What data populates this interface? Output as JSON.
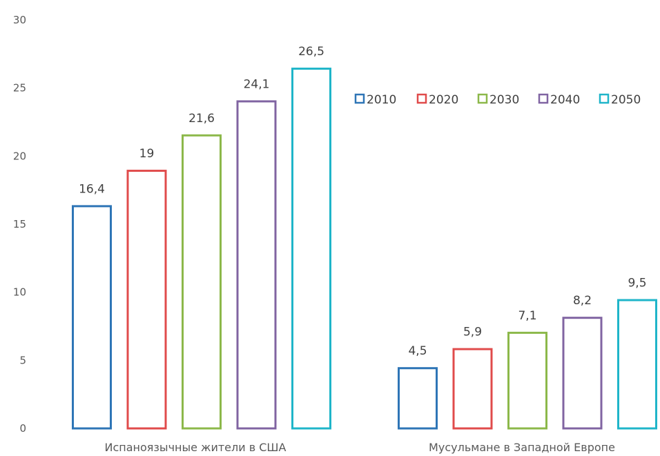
{
  "chart_data": {
    "type": "bar",
    "title": "",
    "xlabel": "",
    "ylabel": "",
    "ylim": [
      0,
      30
    ],
    "yticks": [
      0,
      5,
      10,
      15,
      20,
      25,
      30
    ],
    "grid": false,
    "legend_position": "top-right",
    "categories": [
      "Испаноязычные жители в США",
      "Мусульмане в Западной Европе"
    ],
    "series": [
      {
        "name": "2010",
        "color": "#2E75B6",
        "values": [
          16.4,
          4.5
        ],
        "labels": [
          "16,4",
          "4,5"
        ]
      },
      {
        "name": "2020",
        "color": "#E04B4B",
        "values": [
          19,
          5.9
        ],
        "labels": [
          "19",
          "5,9"
        ]
      },
      {
        "name": "2030",
        "color": "#8CB84A",
        "values": [
          21.6,
          7.1
        ],
        "labels": [
          "21,6",
          "7,1"
        ]
      },
      {
        "name": "2040",
        "color": "#8064A2",
        "values": [
          24.1,
          8.2
        ],
        "labels": [
          "24,1",
          "8,2"
        ]
      },
      {
        "name": "2050",
        "color": "#1FB5C9",
        "values": [
          26.5,
          9.5
        ],
        "labels": [
          "26,5",
          "9,5"
        ]
      }
    ]
  }
}
